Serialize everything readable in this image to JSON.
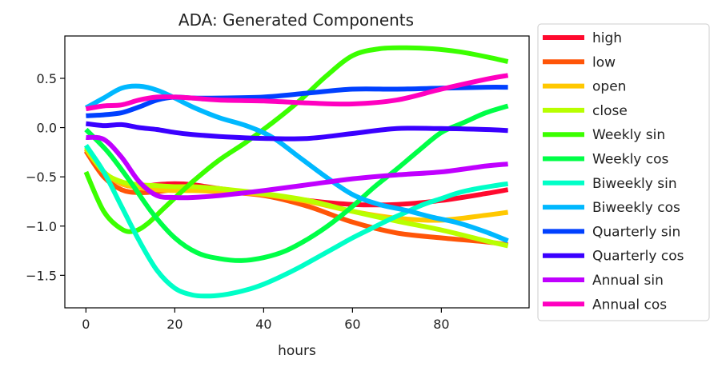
{
  "chart_data": {
    "type": "line",
    "title": "ADA: Generated Components",
    "xlabel": "hours",
    "ylabel": "",
    "xlim": [
      -4.75,
      99.75
    ],
    "ylim": [
      -1.83,
      0.93
    ],
    "xticks": [
      0,
      20,
      40,
      60,
      80
    ],
    "yticks": [
      0.5,
      0.0,
      -0.5,
      -1.0,
      -1.5
    ],
    "ytick_labels": [
      "0.5",
      "0.0",
      "−0.5",
      "−1.0",
      "−1.5"
    ],
    "grid": false,
    "legend_position": "outside-right",
    "series": [
      {
        "name": "high",
        "color": "#ff0a2e",
        "x": [
          0,
          4,
          8,
          12,
          16,
          20,
          24,
          30,
          40,
          50,
          60,
          70,
          80,
          90,
          95
        ],
        "y": [
          -0.22,
          -0.45,
          -0.57,
          -0.6,
          -0.58,
          -0.57,
          -0.58,
          -0.62,
          -0.68,
          -0.74,
          -0.78,
          -0.78,
          -0.74,
          -0.67,
          -0.63
        ]
      },
      {
        "name": "low",
        "color": "#ff5508",
        "x": [
          0,
          4,
          8,
          12,
          16,
          20,
          24,
          30,
          40,
          50,
          60,
          70,
          80,
          90,
          95
        ],
        "y": [
          -0.24,
          -0.5,
          -0.63,
          -0.66,
          -0.65,
          -0.63,
          -0.63,
          -0.65,
          -0.69,
          -0.8,
          -0.96,
          -1.07,
          -1.12,
          -1.16,
          -1.19
        ]
      },
      {
        "name": "open",
        "color": "#ffc800",
        "x": [
          0,
          4,
          8,
          12,
          16,
          20,
          24,
          30,
          40,
          50,
          60,
          70,
          80,
          90,
          95
        ],
        "y": [
          -0.22,
          -0.45,
          -0.57,
          -0.61,
          -0.63,
          -0.64,
          -0.64,
          -0.65,
          -0.68,
          -0.75,
          -0.85,
          -0.92,
          -0.94,
          -0.89,
          -0.86
        ]
      },
      {
        "name": "close",
        "color": "#b8ff00",
        "x": [
          0,
          4,
          8,
          12,
          16,
          20,
          24,
          30,
          40,
          50,
          60,
          70,
          80,
          90,
          95
        ],
        "y": [
          -0.2,
          -0.45,
          -0.55,
          -0.58,
          -0.59,
          -0.6,
          -0.6,
          -0.62,
          -0.67,
          -0.74,
          -0.85,
          -0.95,
          -1.04,
          -1.15,
          -1.2
        ]
      },
      {
        "name": "Weekly sin",
        "color": "#3bff00",
        "x": [
          0,
          4,
          8,
          11,
          14,
          18,
          24,
          30,
          36,
          42,
          48,
          54,
          60,
          66,
          72,
          78,
          84,
          90,
          95
        ],
        "y": [
          -0.45,
          -0.85,
          -1.03,
          -1.05,
          -0.97,
          -0.8,
          -0.55,
          -0.33,
          -0.15,
          0.05,
          0.27,
          0.52,
          0.73,
          0.8,
          0.81,
          0.8,
          0.77,
          0.72,
          0.67
        ]
      },
      {
        "name": "Weekly cos",
        "color": "#00ff47",
        "x": [
          0,
          5,
          10,
          15,
          20,
          25,
          30,
          35,
          40,
          45,
          50,
          55,
          60,
          65,
          70,
          75,
          80,
          85,
          90,
          95
        ],
        "y": [
          -0.02,
          -0.25,
          -0.55,
          -0.87,
          -1.12,
          -1.27,
          -1.33,
          -1.35,
          -1.32,
          -1.25,
          -1.13,
          -0.98,
          -0.8,
          -0.6,
          -0.42,
          -0.23,
          -0.05,
          0.05,
          0.15,
          0.22
        ]
      },
      {
        "name": "Biweekly sin",
        "color": "#00ffc7",
        "x": [
          0,
          4,
          8,
          12,
          16,
          20,
          24,
          28,
          32,
          36,
          40,
          44,
          48,
          52,
          56,
          60,
          64,
          68,
          72,
          76,
          80,
          84,
          88,
          92,
          95
        ],
        "y": [
          -0.18,
          -0.45,
          -0.8,
          -1.15,
          -1.45,
          -1.63,
          -1.7,
          -1.71,
          -1.69,
          -1.65,
          -1.59,
          -1.51,
          -1.42,
          -1.32,
          -1.22,
          -1.12,
          -1.03,
          -0.94,
          -0.86,
          -0.78,
          -0.72,
          -0.66,
          -0.62,
          -0.59,
          -0.57
        ]
      },
      {
        "name": "Biweekly cos",
        "color": "#00b8ff",
        "x": [
          0,
          4,
          8,
          12,
          16,
          20,
          24,
          30,
          36,
          42,
          48,
          54,
          60,
          66,
          72,
          78,
          84,
          90,
          95
        ],
        "y": [
          0.2,
          0.3,
          0.4,
          0.42,
          0.38,
          0.3,
          0.21,
          0.1,
          0.02,
          -0.1,
          -0.3,
          -0.5,
          -0.68,
          -0.78,
          -0.84,
          -0.91,
          -0.97,
          -1.06,
          -1.15
        ]
      },
      {
        "name": "Quarterly sin",
        "color": "#0040ff",
        "x": [
          0,
          4,
          8,
          12,
          16,
          20,
          24,
          30,
          40,
          50,
          60,
          70,
          80,
          90,
          95
        ],
        "y": [
          0.12,
          0.13,
          0.15,
          0.21,
          0.28,
          0.31,
          0.3,
          0.3,
          0.31,
          0.35,
          0.39,
          0.39,
          0.4,
          0.41,
          0.41
        ]
      },
      {
        "name": "Quarterly cos",
        "color": "#3a00ff",
        "x": [
          0,
          4,
          8,
          12,
          16,
          20,
          24,
          30,
          40,
          50,
          60,
          70,
          80,
          90,
          95
        ],
        "y": [
          0.04,
          0.02,
          0.03,
          0.0,
          -0.02,
          -0.05,
          -0.07,
          -0.09,
          -0.11,
          -0.11,
          -0.06,
          -0.01,
          -0.01,
          -0.02,
          -0.03
        ]
      },
      {
        "name": "Annual sin",
        "color": "#c000ff",
        "x": [
          0,
          4,
          8,
          12,
          16,
          20,
          24,
          30,
          40,
          50,
          60,
          70,
          80,
          90,
          95
        ],
        "y": [
          -0.1,
          -0.12,
          -0.3,
          -0.55,
          -0.69,
          -0.71,
          -0.71,
          -0.69,
          -0.64,
          -0.58,
          -0.52,
          -0.48,
          -0.45,
          -0.39,
          -0.37
        ]
      },
      {
        "name": "Annual cos",
        "color": "#ff00c0",
        "x": [
          0,
          4,
          8,
          12,
          16,
          20,
          24,
          30,
          40,
          50,
          60,
          70,
          80,
          90,
          95
        ],
        "y": [
          0.19,
          0.22,
          0.23,
          0.28,
          0.31,
          0.31,
          0.3,
          0.28,
          0.27,
          0.25,
          0.24,
          0.28,
          0.39,
          0.49,
          0.53
        ]
      }
    ]
  }
}
